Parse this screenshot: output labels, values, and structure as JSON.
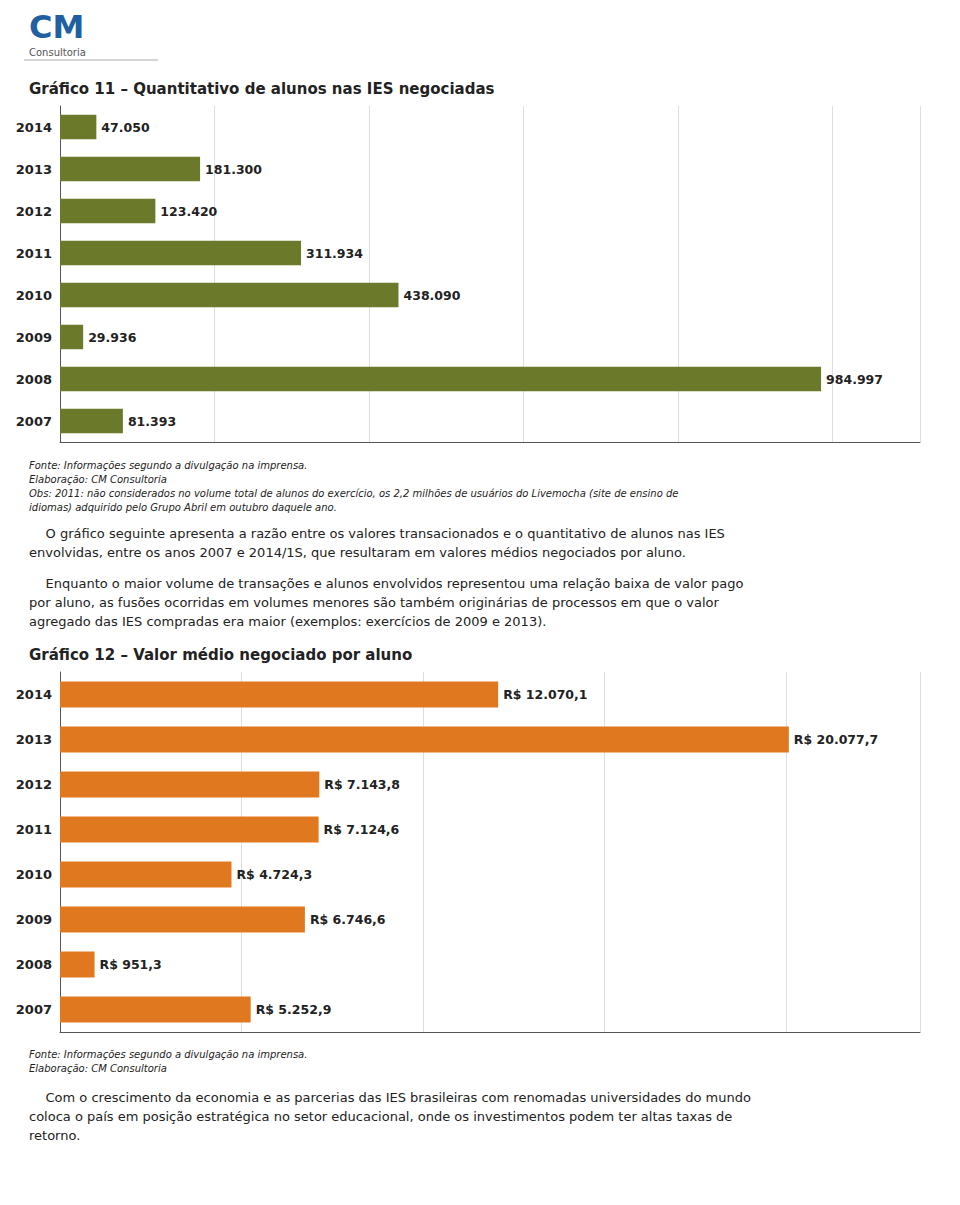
{
  "chart_data": [
    {
      "type": "bar",
      "orientation": "horizontal",
      "title": "Gráfico 11 – Quantitativo de alunos nas IES negociadas",
      "categories": [
        "2014",
        "2013",
        "2012",
        "2011",
        "2010",
        "2009",
        "2008",
        "2007"
      ],
      "values": [
        47050,
        181300,
        123420,
        311934,
        438090,
        29936,
        984997,
        81393
      ],
      "value_labels": [
        "47.050",
        "181.300",
        "123.420",
        "311.934",
        "438.090",
        "29.936",
        "984.997",
        "81.393"
      ],
      "data_labels": true,
      "color": "#6b7a2a",
      "xlim": [
        0,
        1113046.61
      ],
      "xticks": [
        0,
        200000,
        400000,
        600000,
        800000,
        1000000
      ],
      "grid": true,
      "tick_labels": "y",
      "annotations": [
        "CM",
        "Consultoria",
        "Fonte: Informações segundo a divulgação na imprensa.",
        "Elaboração: CM Consultoria",
        "Obs: 2011: não considerados no volume total de alunos do exercício, os 2,2 milhões de usuários do Livemocha (site de ensino de",
        "idiomas) adquirido pelo Grupo Abril em outubro daquele ano.",
        "    O gráfico seguinte apresenta a razão entre os valores transacionados e o quantitativo de alunos nas IES",
        "envolvidas, entre os anos 2007 e 2014/1S, que resultaram em valores médios negociados por aluno.",
        "    Enquanto o maior volume de transações e alunos envolvidos representou uma relação baixa de valor pago",
        "por aluno, as fusões ocorridas em volumes menores são também originárias de processos em que o valor",
        "agregado das IES compradas era maior (exemplos: exercícios de 2009 e 2013)."
      ]
    },
    {
      "type": "bar",
      "orientation": "horizontal",
      "title": "Gráfico 12 – Valor médio negociado por aluno",
      "categories": [
        "2014",
        "2013",
        "2012",
        "2011",
        "2010",
        "2009",
        "2008",
        "2007"
      ],
      "values": [
        12070.1,
        20077.7,
        7143.8,
        7124.6,
        4724.3,
        6746.6,
        951.3,
        5252.9
      ],
      "value_labels": [
        "R$ 12.070,1",
        "R$ 20.077,7",
        "R$ 7.143,8",
        "R$ 7.124,6",
        "R$ 4.724,3",
        "R$ 6.746,6",
        "R$ 951,3",
        "R$ 5.252,9"
      ],
      "data_labels": true,
      "color": "#e07820",
      "xlim": [
        0,
        23691.686
      ],
      "xticks": [
        0,
        5000,
        10000,
        15000,
        20000
      ],
      "grid": true,
      "tick_labels": "y",
      "annotations": [
        "Fonte: Informações segundo a divulgação na imprensa.",
        "Elaboração: CM Consultoria",
        "    Com o crescimento da economia e as parcerias das IES brasileiras com renomadas universidades do mundo",
        "coloca o país em posição estratégica no setor educacional, onde os investimentos podem ter altas taxas de",
        "retorno."
      ]
    }
  ]
}
